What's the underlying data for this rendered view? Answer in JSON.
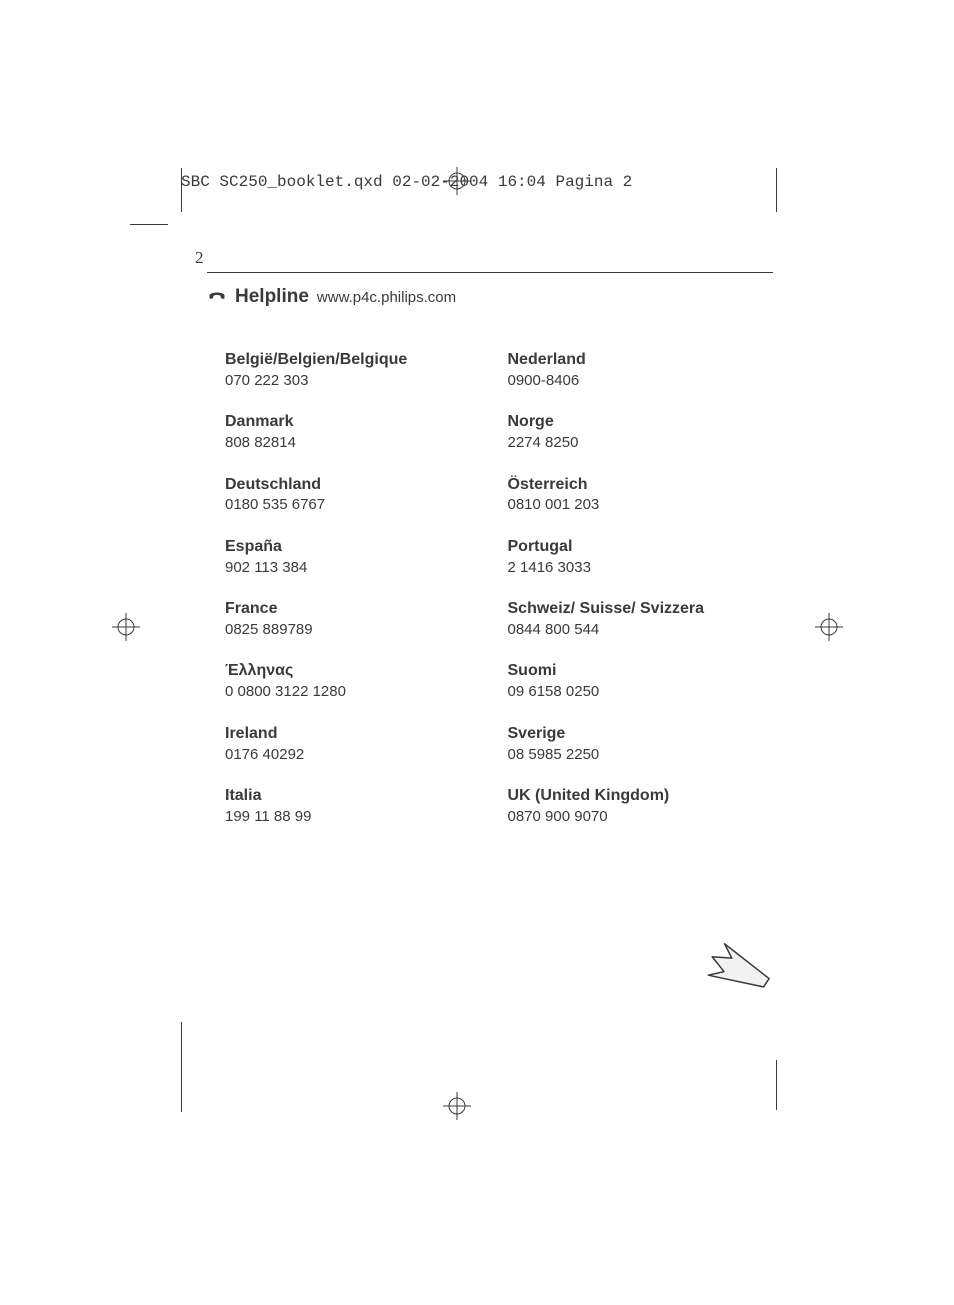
{
  "header_line": "SBC SC250_booklet.qxd  02-02-2004  16:04  Pagina 2",
  "page_number": "2",
  "helpline_title": "Helpline",
  "helpline_url": "www.p4c.philips.com",
  "left_column": [
    {
      "country": "België/Belgien/Belgique",
      "phone": "070 222 303"
    },
    {
      "country": "Danmark",
      "phone": "808 82814"
    },
    {
      "country": "Deutschland",
      "phone": "0180 535 6767"
    },
    {
      "country": "España",
      "phone": "902 113 384"
    },
    {
      "country": "France",
      "phone": "0825 889789"
    },
    {
      "country": "Έλληνας",
      "phone": "0 0800 3122 1280"
    },
    {
      "country": "Ireland",
      "phone": "0176 40292"
    },
    {
      "country": "Italia",
      "phone": "199 11 88 99"
    }
  ],
  "right_column": [
    {
      "country": "Nederland",
      "phone": "0900-8406"
    },
    {
      "country": "Norge",
      "phone": "2274 8250"
    },
    {
      "country": "Österreich",
      "phone": "0810 001 203"
    },
    {
      "country": "Portugal",
      "phone": "2 1416 3033"
    },
    {
      "country": "Schweiz/ Suisse/ Svizzera",
      "phone": "0844 800 544"
    },
    {
      "country": "Suomi",
      "phone": "09 6158 0250"
    },
    {
      "country": "Sverige",
      "phone": "08 5985 2250"
    },
    {
      "country": "UK (United Kingdom)",
      "phone": "0870 900 9070"
    }
  ],
  "colors": {
    "text": "#3a3a3a",
    "background": "#ffffff"
  },
  "typography": {
    "header_font": "Courier New",
    "body_font": "Arial",
    "country_weight": "bold",
    "country_size_pt": 12,
    "phone_size_pt": 11
  }
}
